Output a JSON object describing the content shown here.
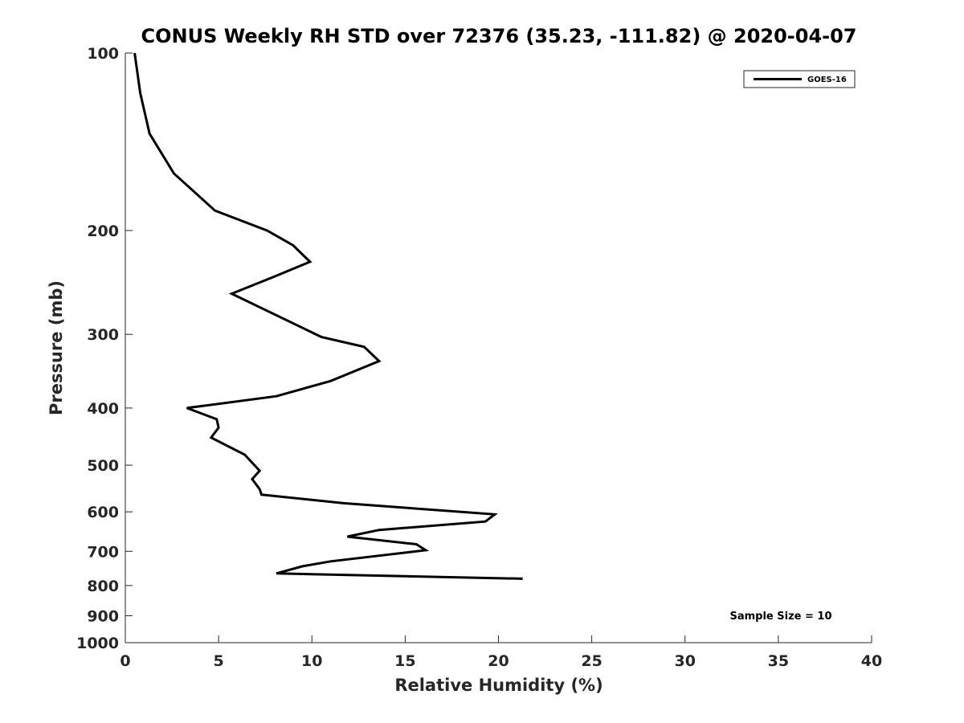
{
  "chart_data": {
    "type": "line",
    "title": "CONUS Weekly RH STD over 72376 (35.23, -111.82) @ 2020-04-07",
    "xlabel": "Relative Humidity (%)",
    "ylabel": "Pressure (mb)",
    "xlim": [
      0,
      40
    ],
    "ylim": [
      1000,
      100
    ],
    "y_scale": "log",
    "y_reversed": true,
    "grid": false,
    "legend_position": "top-right",
    "x_ticks": [
      0,
      5,
      10,
      15,
      20,
      25,
      30,
      35,
      40
    ],
    "y_ticks": [
      100,
      200,
      300,
      400,
      500,
      600,
      700,
      800,
      900,
      1000
    ],
    "series": [
      {
        "name": "GOES-16",
        "color": "#000000",
        "points": [
          [
            0.5,
            100
          ],
          [
            0.8,
            117
          ],
          [
            1.3,
            137
          ],
          [
            2.6,
            160
          ],
          [
            4.8,
            185
          ],
          [
            7.6,
            200
          ],
          [
            9.0,
            212
          ],
          [
            9.9,
            226
          ],
          [
            7.9,
            240
          ],
          [
            5.7,
            256
          ],
          [
            10.5,
            303
          ],
          [
            12.8,
            315
          ],
          [
            13.6,
            333
          ],
          [
            11.0,
            360
          ],
          [
            8.1,
            382
          ],
          [
            3.3,
            400
          ],
          [
            4.9,
            418
          ],
          [
            5.0,
            432
          ],
          [
            4.6,
            449
          ],
          [
            6.4,
            480
          ],
          [
            7.2,
            511
          ],
          [
            6.8,
            528
          ],
          [
            7.2,
            549
          ],
          [
            7.3,
            561
          ],
          [
            11.7,
            580
          ],
          [
            19.8,
            606
          ],
          [
            19.3,
            623
          ],
          [
            13.6,
            644
          ],
          [
            11.9,
            661
          ],
          [
            15.6,
            681
          ],
          [
            16.1,
            697
          ],
          [
            11.0,
            728
          ],
          [
            9.5,
            742
          ],
          [
            8.1,
            763
          ],
          [
            21.3,
            779
          ]
        ]
      }
    ],
    "annotation": "Sample Size = 10"
  }
}
